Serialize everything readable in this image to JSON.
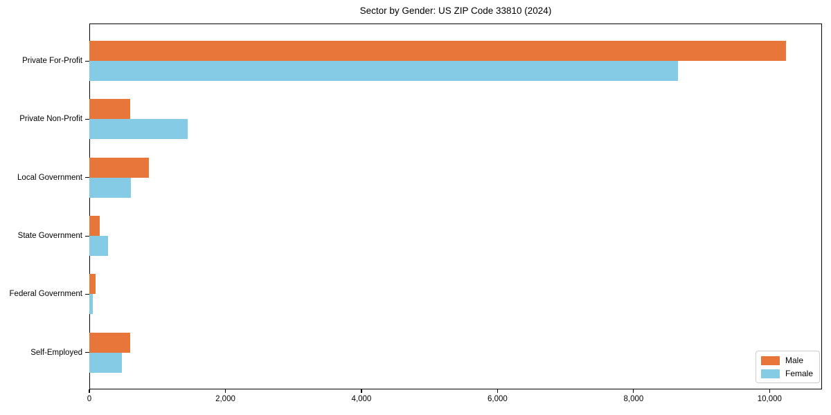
{
  "chart_data": {
    "type": "bar",
    "orientation": "horizontal",
    "title": "Sector by Gender: US ZIP Code 33810 (2024)",
    "categories": [
      "Private For-Profit",
      "Private Non-Profit",
      "Local Government",
      "State Government",
      "Federal Government",
      "Self-Employed"
    ],
    "series": [
      {
        "name": "Male",
        "color": "#e8763b",
        "values": [
          10245,
          605,
          880,
          155,
          90,
          605
        ]
      },
      {
        "name": "Female",
        "color": "#85cbe6",
        "values": [
          8650,
          1445,
          615,
          275,
          55,
          480
        ]
      }
    ],
    "xlabel": "",
    "ylabel": "",
    "xlim": [
      0,
      10770
    ],
    "xticks": [
      0,
      2000,
      4000,
      6000,
      8000,
      10000
    ],
    "xtick_labels": [
      "0",
      "2,000",
      "4,000",
      "6,000",
      "8,000",
      "10,000"
    ],
    "grid": false,
    "legend_position": "lower right",
    "axis_color": "#000000",
    "background_color": "#ffffff"
  }
}
